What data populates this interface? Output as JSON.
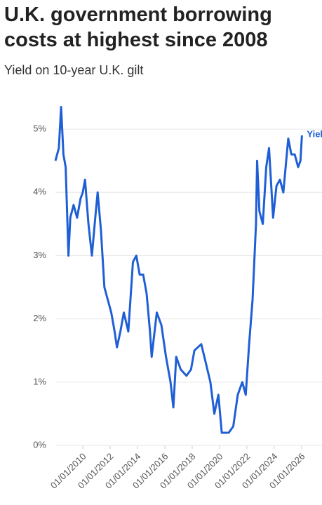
{
  "chart_data": {
    "type": "line",
    "title": "U.K. government borrowing costs at highest since 2008",
    "subtitle": "Yield on 10-year U.K. gilt",
    "x": [
      "2008-01-01",
      "2008-04-01",
      "2008-06-01",
      "2008-08-01",
      "2008-10-01",
      "2008-12-15",
      "2009-02-01",
      "2009-05-01",
      "2009-08-01",
      "2009-11-01",
      "2010-01-01",
      "2010-03-01",
      "2010-06-01",
      "2010-09-01",
      "2010-12-01",
      "2011-02-01",
      "2011-05-01",
      "2011-08-01",
      "2011-11-01",
      "2012-02-01",
      "2012-05-01",
      "2012-07-01",
      "2012-10-01",
      "2013-01-01",
      "2013-05-01",
      "2013-09-01",
      "2013-12-01",
      "2014-03-01",
      "2014-06-01",
      "2014-09-01",
      "2014-12-01",
      "2015-01-15",
      "2015-06-01",
      "2015-10-01",
      "2016-02-01",
      "2016-06-01",
      "2016-08-15",
      "2016-11-01",
      "2017-03-01",
      "2017-08-01",
      "2017-12-01",
      "2018-03-01",
      "2018-09-01",
      "2019-01-01",
      "2019-05-01",
      "2019-08-15",
      "2019-12-01",
      "2020-03-01",
      "2020-06-01",
      "2020-09-01",
      "2021-01-01",
      "2021-05-01",
      "2021-09-01",
      "2021-12-01",
      "2022-03-01",
      "2022-06-01",
      "2022-09-01",
      "2022-10-01",
      "2022-12-01",
      "2023-03-01",
      "2023-06-01",
      "2023-08-15",
      "2023-12-01",
      "2024-03-01",
      "2024-06-01",
      "2024-09-01",
      "2024-12-01",
      "2025-01-10",
      "2025-04-01",
      "2025-07-01",
      "2025-10-01",
      "2025-12-01",
      "2026-01-10"
    ],
    "series": [
      {
        "name": "Yield",
        "color": "#1f5fd6",
        "values": [
          4.5,
          4.7,
          5.35,
          4.6,
          4.4,
          3.0,
          3.6,
          3.8,
          3.6,
          3.9,
          4.0,
          4.2,
          3.5,
          3.0,
          3.6,
          4.0,
          3.4,
          2.5,
          2.3,
          2.1,
          1.8,
          1.55,
          1.8,
          2.1,
          1.8,
          2.9,
          3.0,
          2.7,
          2.7,
          2.4,
          1.8,
          1.4,
          2.1,
          1.9,
          1.4,
          1.0,
          0.6,
          1.4,
          1.2,
          1.1,
          1.2,
          1.5,
          1.6,
          1.3,
          1.0,
          0.5,
          0.8,
          0.2,
          0.2,
          0.2,
          0.3,
          0.8,
          1.0,
          0.8,
          1.6,
          2.3,
          3.5,
          4.5,
          3.7,
          3.5,
          4.4,
          4.7,
          3.6,
          4.1,
          4.2,
          4.0,
          4.6,
          4.85,
          4.6,
          4.6,
          4.4,
          4.5,
          4.9
        ]
      }
    ],
    "xlim": [
      "2008-01-01",
      "2026-06-01"
    ],
    "xticks": [
      {
        "value": "2010-01-01",
        "label": "01/01/2010"
      },
      {
        "value": "2012-01-01",
        "label": "01/01/2012"
      },
      {
        "value": "2014-01-01",
        "label": "01/01/2014"
      },
      {
        "value": "2016-01-01",
        "label": "01/01/2016"
      },
      {
        "value": "2018-01-01",
        "label": "01/01/2018"
      },
      {
        "value": "2020-01-01",
        "label": "01/01/2020"
      },
      {
        "value": "2022-01-01",
        "label": "01/01/2022"
      },
      {
        "value": "2024-01-01",
        "label": "01/01/2024"
      },
      {
        "value": "2026-01-01",
        "label": "01/01/2026"
      }
    ],
    "ylim": [
      0,
      5.4
    ],
    "yticks": [
      {
        "value": 0,
        "label": "0%"
      },
      {
        "value": 1,
        "label": "1%"
      },
      {
        "value": 2,
        "label": "2%"
      },
      {
        "value": 3,
        "label": "3%"
      },
      {
        "value": 4,
        "label": "4%"
      },
      {
        "value": 5,
        "label": "5%"
      }
    ],
    "grid": true
  }
}
